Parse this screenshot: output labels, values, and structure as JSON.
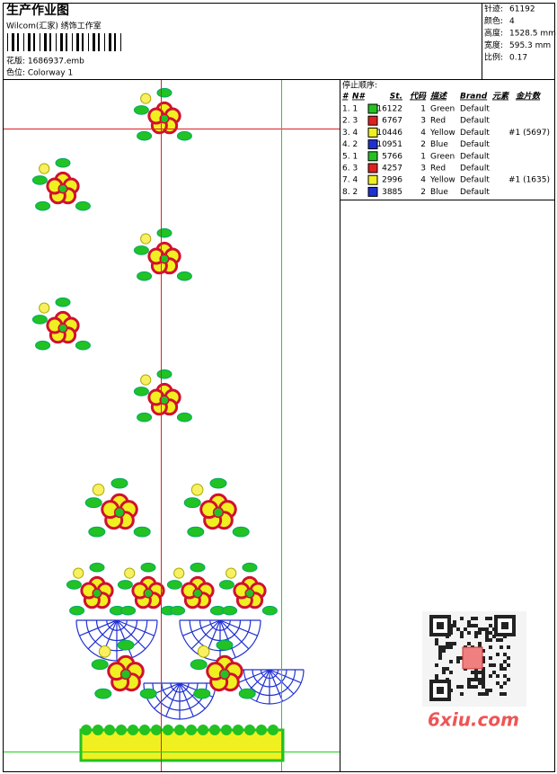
{
  "header": {
    "title": "生产作业图",
    "company": "Wilcom(汇家) 绣饰工作室",
    "design": "花版: 1686937.emb",
    "colorway": "色位: Colorway 1"
  },
  "stats": [
    {
      "label": "针迹:",
      "value": "61192"
    },
    {
      "label": "颜色:",
      "value": "4"
    },
    {
      "label": "高度:",
      "value": "1528.5 mm"
    },
    {
      "label": "宽度:",
      "value": "595.3 mm"
    },
    {
      "label": "比例:",
      "value": "0.17"
    }
  ],
  "stop_sequence": {
    "title": "停止顺序:",
    "columns": [
      "#",
      "N#",
      "St.",
      "代码",
      "描述",
      "Brand",
      "元素",
      "金片数"
    ],
    "rows": [
      {
        "num": "1. 1",
        "color": "#22c222",
        "st": 16122,
        "code": 1,
        "desc": "Green",
        "brand": "Default"
      },
      {
        "num": "2. 3",
        "color": "#e02020",
        "st": 6767,
        "code": 3,
        "desc": "Red",
        "brand": "Default"
      },
      {
        "num": "3. 4",
        "color": "#f0f020",
        "st": 10446,
        "code": 4,
        "desc": "Yellow",
        "brand": "Default",
        "sequins": "#1 (5697)"
      },
      {
        "num": "4. 2",
        "color": "#2030d0",
        "st": 10951,
        "code": 2,
        "desc": "Blue",
        "brand": "Default"
      },
      {
        "num": "5. 1",
        "color": "#22c222",
        "st": 5766,
        "code": 1,
        "desc": "Green",
        "brand": "Default"
      },
      {
        "num": "6. 3",
        "color": "#e02020",
        "st": 4257,
        "code": 3,
        "desc": "Red",
        "brand": "Default"
      },
      {
        "num": "7. 4",
        "color": "#f0f020",
        "st": 2996,
        "code": 4,
        "desc": "Yellow",
        "brand": "Default",
        "sequins": "#1 (1635)"
      },
      {
        "num": "8. 2",
        "color": "#2030d0",
        "st": 3885,
        "code": 2,
        "desc": "Blue",
        "brand": "Default"
      }
    ]
  },
  "watermark": "6xiu.com"
}
